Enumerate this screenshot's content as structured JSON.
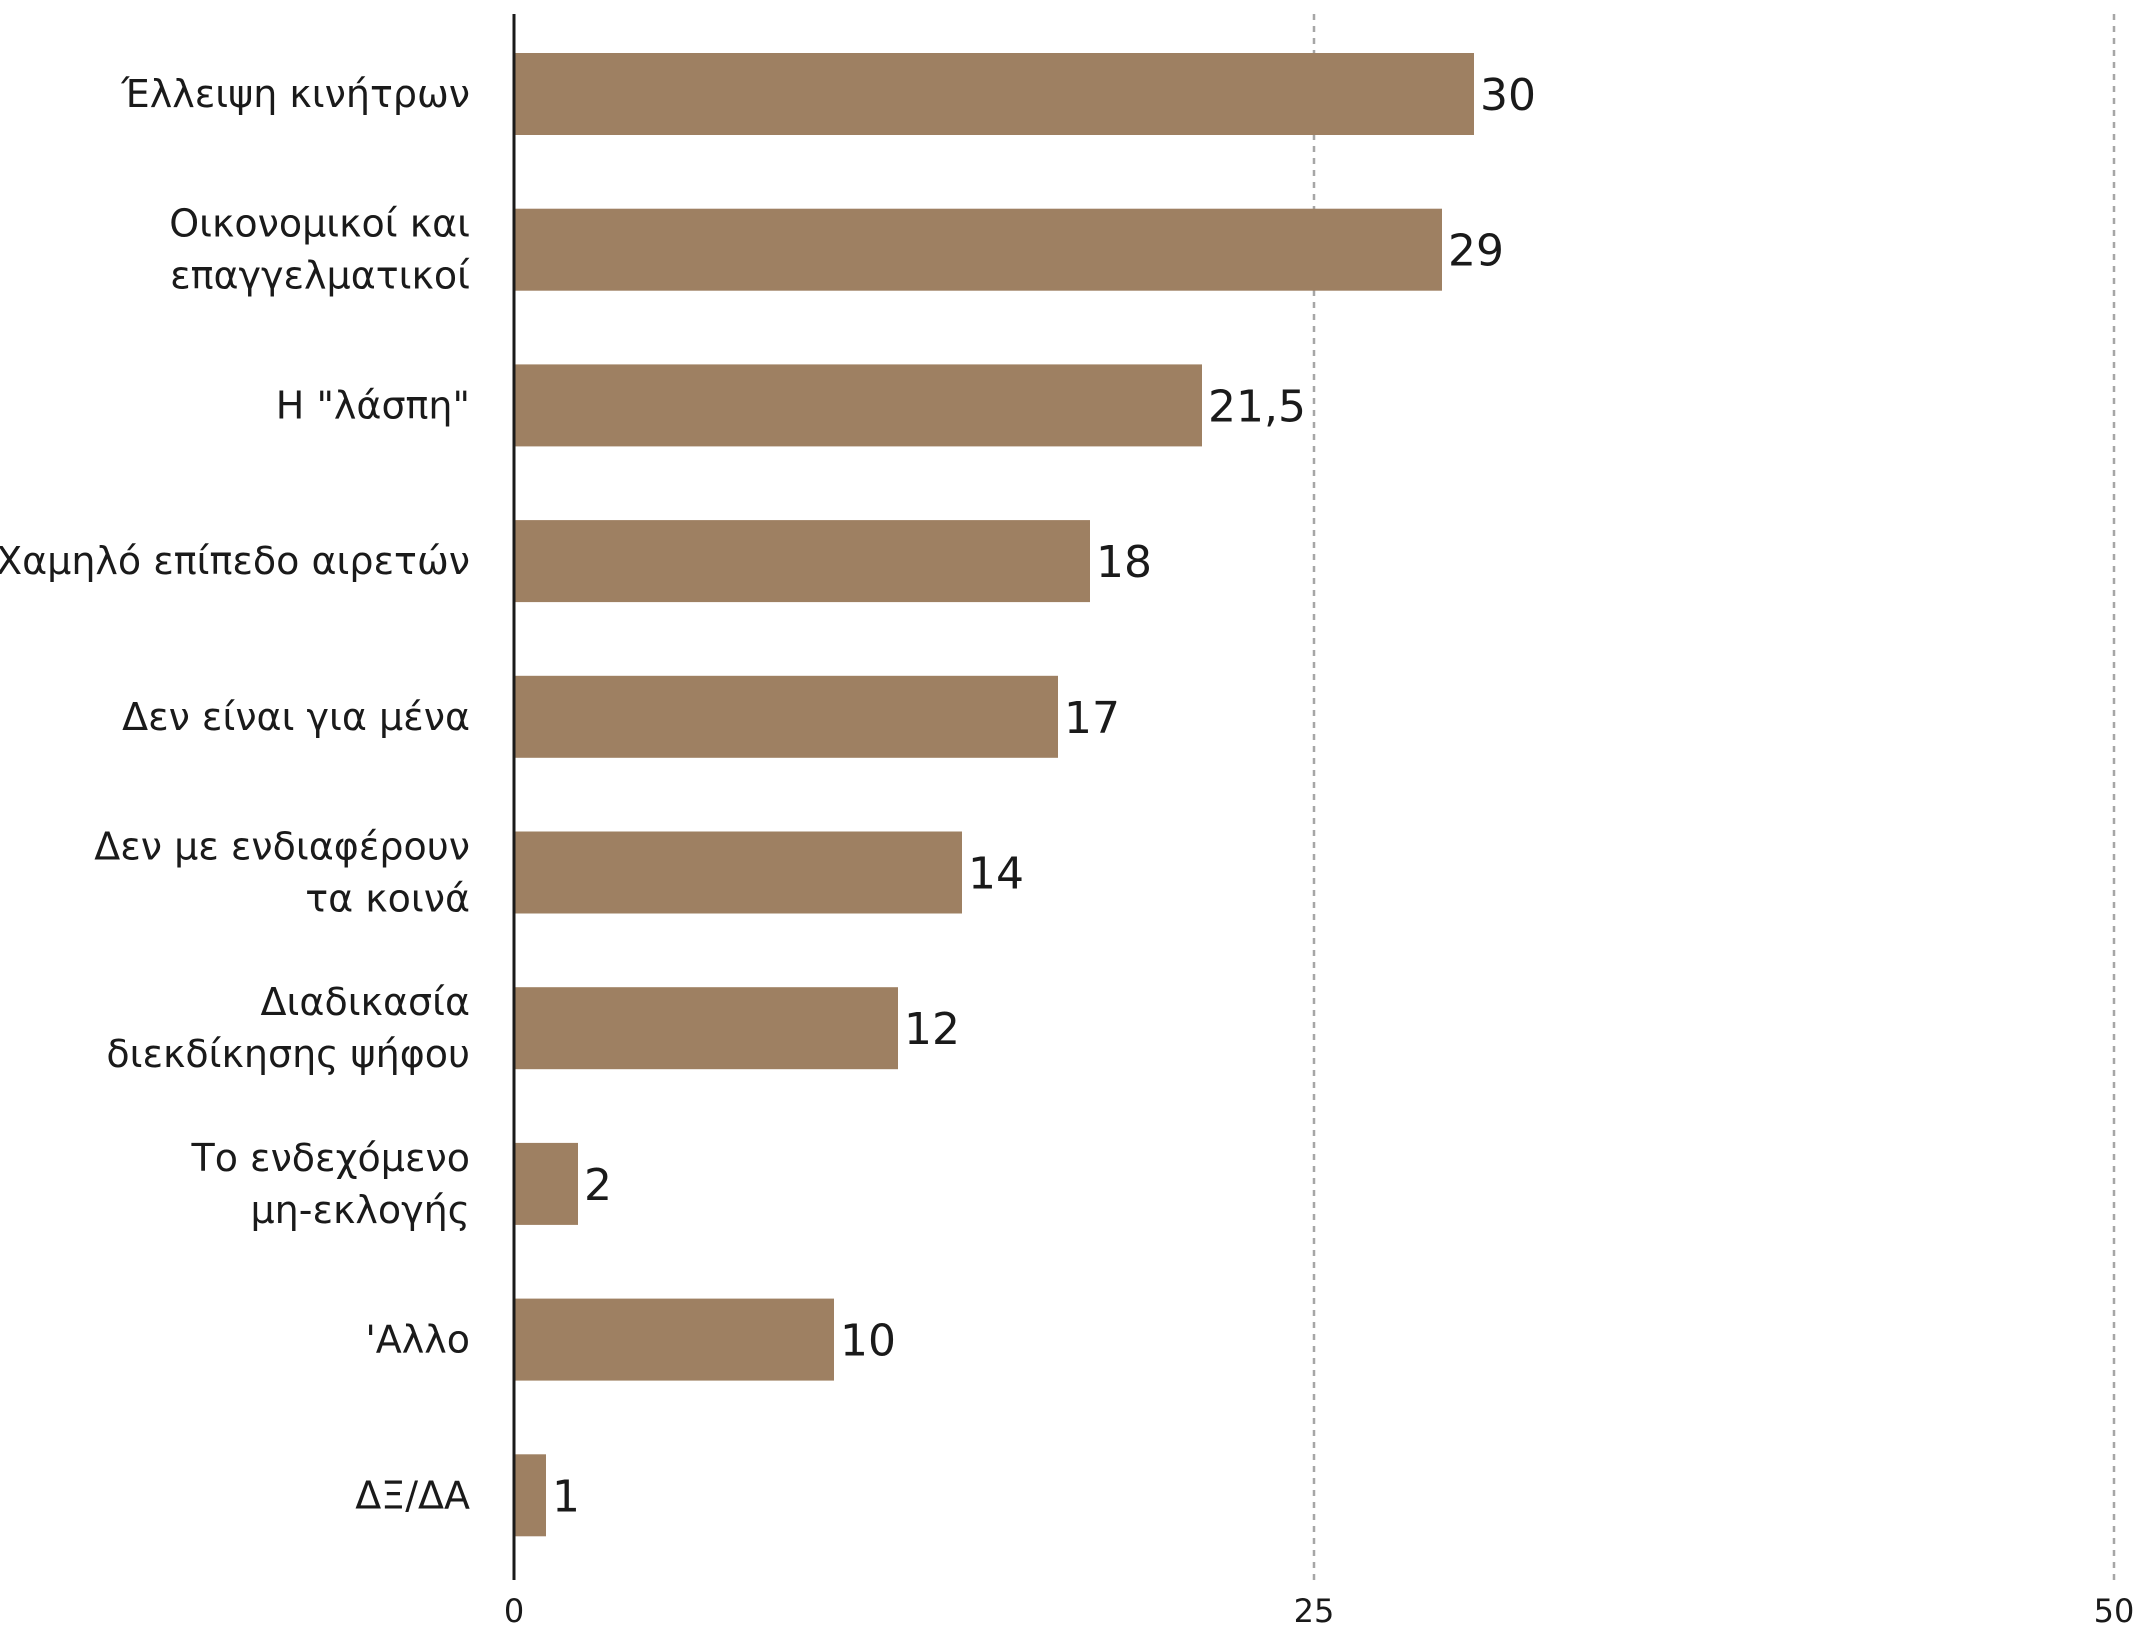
{
  "chart_data": {
    "type": "bar",
    "orientation": "horizontal",
    "categories": [
      [
        "Έλλειψη κινήτρων"
      ],
      [
        "Οικονομικοί και",
        "επαγγελματικοί"
      ],
      [
        "Η \"λάσπη\""
      ],
      [
        "Χαμηλό επίπεδο αιρετών"
      ],
      [
        "Δεν είναι για μένα"
      ],
      [
        "Δεν με ενδιαφέρουν",
        "τα κοινά"
      ],
      [
        "Διαδικασία",
        "διεκδίκησης ψήφου"
      ],
      [
        "Το ενδεχόμενο",
        "μη-εκλογής"
      ],
      [
        "'Αλλο"
      ],
      [
        "ΔΞ/ΔΑ"
      ]
    ],
    "values": [
      30,
      29,
      21.5,
      18,
      17,
      14,
      12,
      2,
      10,
      1
    ],
    "value_labels": [
      "30",
      "29",
      "21,5",
      "18",
      "17",
      "14",
      "12",
      "2",
      "10",
      "1"
    ],
    "xlim": [
      0,
      50
    ],
    "xticks": [
      0,
      25,
      50
    ],
    "xtick_labels": [
      "0",
      "25",
      "50"
    ],
    "grid": "vertical dashed at 25 and 50",
    "bar_color": "#9e8062",
    "gridline_color": "#a6a6a6",
    "axis_color": "#1a1a1a",
    "text_color": "#1a1a1a",
    "title": "",
    "xlabel": "",
    "ylabel": ""
  }
}
